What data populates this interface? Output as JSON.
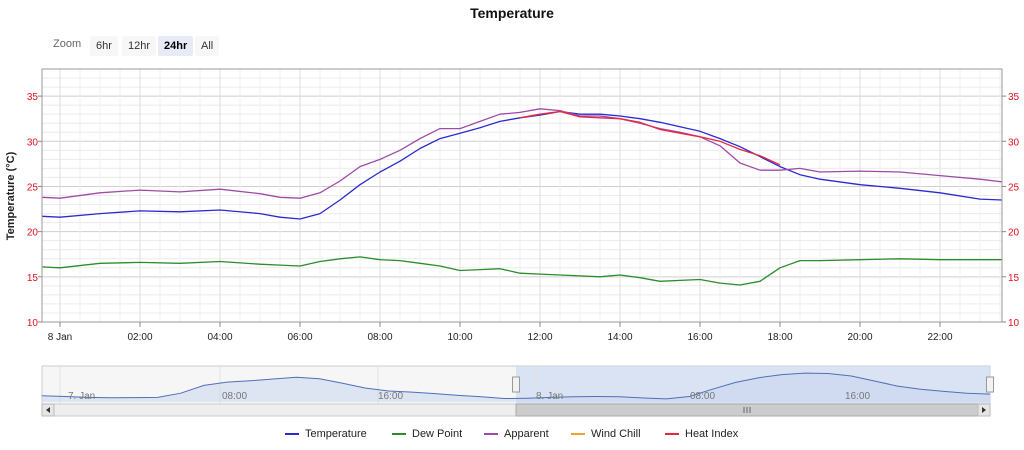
{
  "chart_data": {
    "type": "line",
    "title": "Temperature",
    "ylabel": "Temperature (°C)",
    "ylim": [
      10,
      38
    ],
    "y_ticks": [
      10,
      15,
      20,
      25,
      30,
      35
    ],
    "x_range_hours": [
      -0.45,
      23.55
    ],
    "x_ticks": [
      {
        "h": 0,
        "label": "8 Jan"
      },
      {
        "h": 2,
        "label": "02:00"
      },
      {
        "h": 4,
        "label": "04:00"
      },
      {
        "h": 6,
        "label": "06:00"
      },
      {
        "h": 8,
        "label": "08:00"
      },
      {
        "h": 10,
        "label": "10:00"
      },
      {
        "h": 12,
        "label": "12:00"
      },
      {
        "h": 14,
        "label": "14:00"
      },
      {
        "h": 16,
        "label": "16:00"
      },
      {
        "h": 18,
        "label": "18:00"
      },
      {
        "h": 20,
        "label": "20:00"
      },
      {
        "h": 22,
        "label": "22:00"
      }
    ],
    "grid": true,
    "legend_position": "bottom",
    "series": [
      {
        "name": "Temperature",
        "color": "#2a2ad0",
        "x": [
          -0.45,
          0,
          1,
          2,
          3,
          4,
          5,
          5.5,
          6,
          6.5,
          7,
          7.5,
          8,
          8.5,
          9,
          9.5,
          10,
          10.5,
          11,
          11.5,
          12,
          12.5,
          13,
          13.5,
          14,
          14.5,
          15,
          15.5,
          16,
          16.5,
          17,
          17.5,
          18,
          18.5,
          19,
          20,
          21,
          22,
          23,
          23.55
        ],
        "y": [
          21.7,
          21.6,
          22.0,
          22.3,
          22.2,
          22.4,
          22.0,
          21.6,
          21.4,
          22.0,
          23.5,
          25.2,
          26.6,
          27.8,
          29.2,
          30.3,
          30.9,
          31.5,
          32.2,
          32.6,
          32.9,
          33.3,
          33.0,
          33.0,
          32.8,
          32.5,
          32.1,
          31.6,
          31.1,
          30.3,
          29.4,
          28.3,
          27.2,
          26.3,
          25.8,
          25.2,
          24.8,
          24.3,
          23.6,
          23.5
        ]
      },
      {
        "name": "Dew Point",
        "color": "#2c8c2c",
        "x": [
          -0.45,
          0,
          1,
          2,
          3,
          4,
          5,
          5.5,
          6,
          6.5,
          7,
          7.5,
          8,
          8.5,
          9,
          9.5,
          10,
          10.5,
          11,
          11.5,
          12,
          12.5,
          13,
          13.5,
          14,
          14.5,
          15,
          15.5,
          16,
          16.5,
          17,
          17.5,
          18,
          18.5,
          19,
          20,
          21,
          22,
          23,
          23.55
        ],
        "y": [
          16.1,
          16.0,
          16.5,
          16.6,
          16.5,
          16.7,
          16.4,
          16.3,
          16.2,
          16.7,
          17.0,
          17.2,
          16.9,
          16.8,
          16.5,
          16.2,
          15.7,
          15.8,
          15.9,
          15.4,
          15.3,
          15.2,
          15.1,
          15.0,
          15.2,
          14.9,
          14.5,
          14.6,
          14.7,
          14.3,
          14.1,
          14.5,
          16.0,
          16.8,
          16.8,
          16.9,
          17.0,
          16.9,
          16.9,
          16.9
        ]
      },
      {
        "name": "Apparent",
        "color": "#a04aa8",
        "x": [
          -0.45,
          0,
          1,
          2,
          3,
          4,
          5,
          5.5,
          6,
          6.5,
          7,
          7.5,
          8,
          8.5,
          9,
          9.5,
          10,
          10.5,
          11,
          11.5,
          12,
          12.5,
          13,
          13.5,
          14,
          14.5,
          15,
          15.5,
          16,
          16.5,
          17,
          17.5,
          18,
          18.5,
          19,
          20,
          21,
          22,
          23,
          23.55
        ],
        "y": [
          23.8,
          23.7,
          24.3,
          24.6,
          24.4,
          24.7,
          24.2,
          23.8,
          23.7,
          24.3,
          25.6,
          27.2,
          28.0,
          29.0,
          30.3,
          31.4,
          31.4,
          32.2,
          33.0,
          33.2,
          33.6,
          33.4,
          32.8,
          32.8,
          32.5,
          32.0,
          31.4,
          31.0,
          30.5,
          29.5,
          27.6,
          26.8,
          26.8,
          27.0,
          26.6,
          26.7,
          26.6,
          26.2,
          25.8,
          25.5
        ]
      },
      {
        "name": "Wind Chill",
        "color": "#f0a030",
        "x": [],
        "y": []
      },
      {
        "name": "Heat Index",
        "color": "#e8283c",
        "x": [
          11.5,
          12,
          12.5,
          13,
          13.5,
          14,
          14.5,
          15,
          15.5,
          16,
          16.5,
          17,
          17.5,
          18
        ],
        "y": [
          32.6,
          33.0,
          33.3,
          32.7,
          32.6,
          32.5,
          32.1,
          31.3,
          30.9,
          30.5,
          30.0,
          29.1,
          28.4,
          27.4
        ]
      }
    ]
  },
  "zoom": {
    "label": "Zoom",
    "buttons": [
      "6hr",
      "12hr",
      "24hr",
      "All"
    ],
    "selected": "24hr"
  },
  "navigator": {
    "labels": [
      "7. Jan",
      "08:00",
      "16:00",
      "8. Jan",
      "08:00",
      "16:00"
    ],
    "values": [
      22.8,
      22.5,
      22.1,
      21.9,
      22.0,
      22.1,
      24.0,
      27.5,
      29.0,
      29.6,
      30.4,
      31.2,
      30.5,
      28.5,
      26.3,
      25.0,
      24.5,
      23.8,
      23.0,
      22.4,
      21.6,
      21.7,
      22.1,
      22.4,
      22.5,
      22.4,
      21.8,
      21.4,
      22.5,
      25.8,
      28.9,
      31.0,
      32.4,
      33.1,
      32.9,
      31.8,
      29.5,
      27.2,
      25.8,
      24.8,
      24.0,
      23.6
    ],
    "selection_fraction": [
      0.5,
      1.0
    ]
  }
}
